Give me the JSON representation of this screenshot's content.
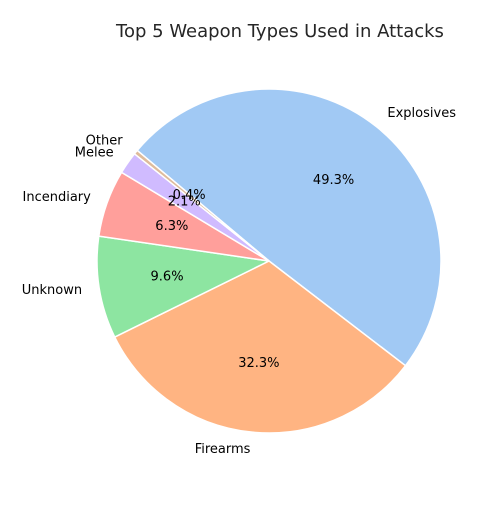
{
  "chart_data": {
    "type": "pie",
    "title": "Top 5 Weapon Types Used in Attacks",
    "categories": [
      "Explosives",
      "Firearms",
      "Unknown",
      "Incendiary",
      "Melee",
      "Other"
    ],
    "values": [
      49.3,
      32.3,
      9.6,
      6.3,
      2.1,
      0.4
    ],
    "value_labels": [
      "49.3%",
      "32.3%",
      "9.6%",
      "6.3%",
      "2.1%",
      "0.4%"
    ],
    "colors": [
      "#a1c9f4",
      "#ffb482",
      "#8de5a1",
      "#ff9f9b",
      "#d0bbff",
      "#debb9b"
    ],
    "start_angle_deg": 140,
    "direction": "clockwise",
    "legend": "none"
  }
}
